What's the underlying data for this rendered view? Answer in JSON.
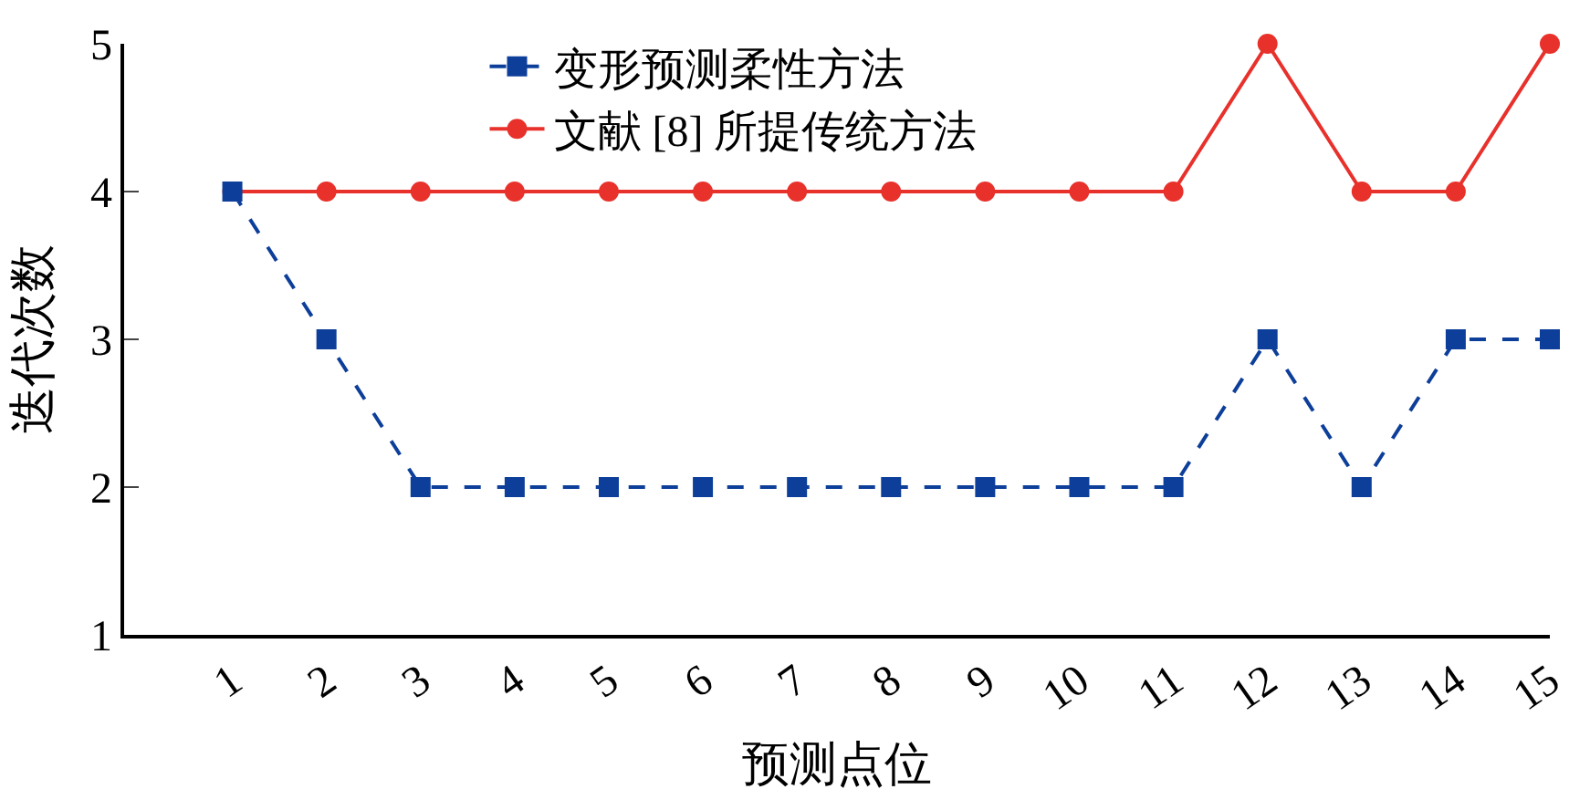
{
  "chart_data": {
    "type": "line",
    "xlabel": "预测点位",
    "ylabel": "迭代次数",
    "x": [
      1,
      2,
      3,
      4,
      5,
      6,
      7,
      8,
      9,
      10,
      11,
      12,
      13,
      14,
      15
    ],
    "xlim": [
      -0.15,
      15
    ],
    "xticks": [
      1,
      2,
      3,
      4,
      5,
      6,
      7,
      8,
      9,
      10,
      11,
      12,
      13,
      14,
      15
    ],
    "ylim": [
      1,
      5
    ],
    "yticks": [
      1,
      2,
      3,
      4,
      5
    ],
    "series": [
      {
        "name": "变形预测柔性方法",
        "color": "#0d3f9a",
        "marker": "square",
        "line_style": "dashed",
        "values": [
          4,
          3,
          2,
          2,
          2,
          2,
          2,
          2,
          2,
          2,
          2,
          3,
          2,
          3,
          3
        ]
      },
      {
        "name": "文献 [8] 所提传统方法",
        "color": "#e8312b",
        "marker": "circle",
        "line_style": "solid",
        "values": [
          4,
          4,
          4,
          4,
          4,
          4,
          4,
          4,
          4,
          4,
          4,
          5,
          4,
          4,
          5
        ]
      }
    ],
    "legend": "top"
  }
}
